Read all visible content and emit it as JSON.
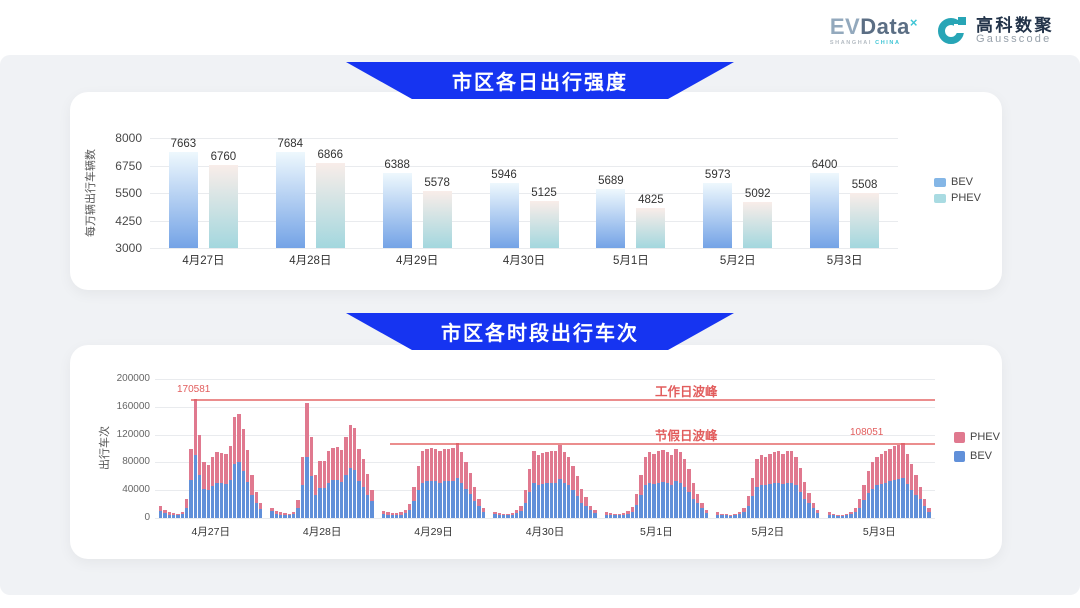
{
  "header": {
    "evdata": {
      "ev": "EV",
      "data": "Data",
      "sup": "×",
      "sub_left": "SHANGHAI ",
      "sub_right": "CHINA"
    },
    "gausscode": {
      "cn": "高科数聚",
      "en": "Gausscode"
    }
  },
  "colors": {
    "banner_blue": "#1634f1",
    "bev_grad_top": "#eef8fd",
    "bev_grad_bottom": "#74a3e6",
    "phev_grad_top": "#f9ede9",
    "phev_grad_bottom": "#a3d7de",
    "legend_bev_swatch": "#84b6e6",
    "legend_phev_swatch": "#a9dbe2",
    "bev_bar": "#6190d9",
    "phev_bar": "#e0798f",
    "annotation_red": "#e25d5d",
    "grid": "#e9ebee",
    "gauss_teal": "#27a5b6"
  },
  "chart_data": [
    {
      "type": "bar",
      "title": "市区各日出行强度",
      "ylabel": "每万辆出行车辆数",
      "ylim": [
        3000,
        8000
      ],
      "yticks": [
        3000,
        4250,
        5500,
        6750,
        8000
      ],
      "grid": true,
      "legend_position": "right",
      "categories": [
        "4月27日",
        "4月28日",
        "4月29日",
        "4月30日",
        "5月1日",
        "5月2日",
        "5月3日"
      ],
      "series": [
        {
          "name": "BEV",
          "values": [
            7663,
            7684,
            6388,
            5946,
            5689,
            5973,
            6400
          ]
        },
        {
          "name": "PHEV",
          "values": [
            6760,
            6866,
            5578,
            5125,
            4825,
            5092,
            5508
          ]
        }
      ],
      "legend": [
        "BEV",
        "PHEV"
      ]
    },
    {
      "type": "bar",
      "subtype": "stacked-hourly",
      "title": "市区各时段出行车次",
      "ylabel": "出行车次",
      "ylim": [
        0,
        200000
      ],
      "yticks": [
        0,
        40000,
        80000,
        120000,
        160000,
        200000
      ],
      "grid": true,
      "legend_position": "right",
      "legend": [
        "PHEV",
        "BEV"
      ],
      "annotations": {
        "workday": {
          "label": "工作日波峰",
          "value": 170581,
          "value_label": "170581"
        },
        "holiday": {
          "label": "节假日波峰",
          "value": 108051,
          "value_label": "108051"
        }
      },
      "days": [
        {
          "date": "4月27日",
          "bev": [
            10500,
            7000,
            5000,
            4500,
            4000,
            5500,
            15000,
            55000,
            91000,
            62000,
            42000,
            40000,
            46000,
            50000,
            50000,
            49000,
            55000,
            78000,
            80000,
            68000,
            52000,
            33000,
            21000,
            13000
          ],
          "phev": [
            6500,
            4000,
            3000,
            2500,
            2000,
            3500,
            13000,
            45000,
            79581,
            58000,
            38000,
            36000,
            42000,
            45000,
            44000,
            43000,
            49000,
            68000,
            69000,
            60000,
            46000,
            29000,
            17000,
            9000
          ]
        },
        {
          "date": "4月28日",
          "bev": [
            9500,
            6000,
            5000,
            4500,
            4000,
            5500,
            14000,
            47000,
            88000,
            61000,
            33000,
            43000,
            43000,
            51000,
            54000,
            54000,
            52000,
            62000,
            72000,
            69000,
            53000,
            45000,
            33000,
            25000
          ],
          "phev": [
            5500,
            4000,
            3000,
            2500,
            2000,
            3500,
            12000,
            41000,
            77000,
            56000,
            29000,
            39000,
            39000,
            45000,
            47000,
            48000,
            46000,
            54000,
            62000,
            60000,
            47000,
            40000,
            30000,
            15000
          ]
        },
        {
          "date": "4月29日",
          "bev": [
            6000,
            5000,
            4500,
            4500,
            5000,
            7500,
            11000,
            24000,
            40000,
            51000,
            53000,
            53000,
            53000,
            51000,
            53000,
            53000,
            53000,
            57000,
            50000,
            42000,
            34000,
            24000,
            17000,
            9000
          ],
          "phev": [
            4000,
            3000,
            2500,
            2500,
            3000,
            4500,
            9000,
            21000,
            35000,
            46000,
            47000,
            48000,
            47000,
            46000,
            47000,
            47000,
            48000,
            51000,
            45000,
            38000,
            31000,
            21000,
            11000,
            6000
          ]
        },
        {
          "date": "4月30日",
          "bev": [
            5500,
            4500,
            4000,
            4000,
            4500,
            7000,
            10000,
            21000,
            37000,
            51000,
            48000,
            49000,
            50000,
            51000,
            51000,
            56000,
            50000,
            47000,
            40000,
            32000,
            22000,
            18000,
            11000,
            7500
          ],
          "phev": [
            3500,
            2500,
            2000,
            2000,
            2500,
            4000,
            8000,
            19000,
            33000,
            46000,
            42000,
            44000,
            45000,
            45000,
            46000,
            49000,
            45000,
            41000,
            35000,
            28000,
            20000,
            12000,
            7000,
            4500
          ]
        },
        {
          "date": "5月1日",
          "bev": [
            5000,
            4500,
            4000,
            4000,
            4500,
            6000,
            9000,
            19000,
            33000,
            47000,
            50000,
            49000,
            51000,
            52000,
            50000,
            48000,
            53000,
            50000,
            45000,
            37000,
            27000,
            21000,
            14000,
            7500
          ],
          "phev": [
            3000,
            2500,
            2000,
            2000,
            2500,
            4000,
            7000,
            16000,
            29000,
            41000,
            45000,
            43000,
            45000,
            46000,
            45000,
            42000,
            47000,
            45000,
            40000,
            33000,
            23000,
            14000,
            8000,
            4500
          ]
        },
        {
          "date": "5月2日",
          "bev": [
            5000,
            4000,
            4000,
            3000,
            4000,
            5500,
            8000,
            17000,
            31000,
            45000,
            48000,
            47000,
            49000,
            50000,
            51000,
            49000,
            51000,
            51000,
            47000,
            38000,
            28000,
            22000,
            14000,
            7500
          ],
          "phev": [
            3000,
            2000,
            2000,
            2000,
            2000,
            3500,
            7000,
            15000,
            27000,
            40000,
            42000,
            41000,
            43000,
            45000,
            46000,
            43000,
            45000,
            46000,
            41000,
            34000,
            24000,
            14000,
            8000,
            4500
          ]
        },
        {
          "date": "5月3日",
          "bev": [
            5000,
            4000,
            3000,
            3000,
            4000,
            5500,
            8000,
            15000,
            26000,
            36000,
            42000,
            47000,
            49000,
            51000,
            53000,
            55000,
            56000,
            57051,
            49000,
            41000,
            33000,
            27000,
            17000,
            9000
          ],
          "phev": [
            3000,
            2000,
            2000,
            2000,
            2000,
            3500,
            6000,
            13000,
            22000,
            32000,
            38000,
            41000,
            43000,
            45000,
            47000,
            48000,
            49000,
            51000,
            43000,
            37000,
            29000,
            18000,
            11000,
            6000
          ]
        }
      ]
    }
  ]
}
